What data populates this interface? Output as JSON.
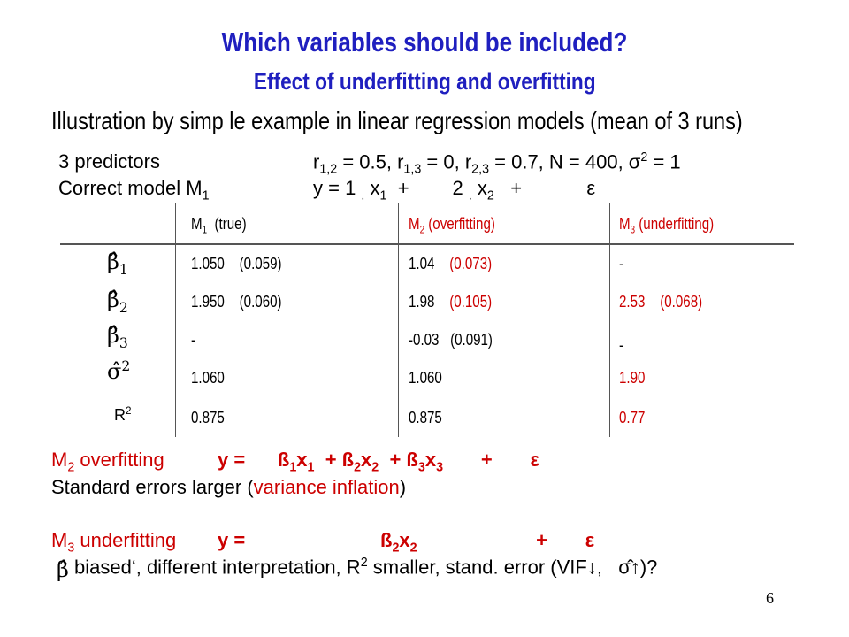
{
  "title": "Which variables should be included?",
  "subtitle": "Effect of underfitting and overfitting",
  "illustration": "Illustration by simp le example in linear regression models (mean of 3 runs)",
  "setup": {
    "predictors_label": "3 predictors",
    "correlations": "r1,2 = 0.5, r1,3 = 0, r2,3 = 0.7, N = 400, σ2 = 1",
    "model_label": "Correct model M1",
    "model_eq": "y = 1 . x1 + 2 . x2 + ε"
  },
  "table": {
    "headers": [
      "M1 (true)",
      "M2 (overfitting)",
      "M3 (underfitting)"
    ],
    "rows": [
      {
        "label": "β̂1",
        "m1": "1.050 (0.059)",
        "m2": "1.04 (0.073)",
        "m3": "-"
      },
      {
        "label": "β̂2",
        "m1": "1.950 (0.060)",
        "m2": "1.98 (0.105)",
        "m3": "2.53 (0.068)"
      },
      {
        "label": "β̂3",
        "m1": "-",
        "m2": "-0.03 (0.091)",
        "m3": "-"
      },
      {
        "label": "σ̂2",
        "m1": "1.060",
        "m2": "1.060",
        "m3": "1.90"
      },
      {
        "label": "R2",
        "m1": "0.875",
        "m2": "0.875",
        "m3": "0.77"
      }
    ]
  },
  "overfit": {
    "label": "M2 overfitting",
    "eq": "y = ß1x1 + ß2x2 + ß3x3 + ε",
    "note_prefix": "Standard errors larger (",
    "note_highlight": "variance inflation",
    "note_suffix": ")"
  },
  "underfit": {
    "label": "M3 underfitting",
    "eq": "y = ß2x2 + ε",
    "note": "biased‘, different interpretation, R2 smaller, stand. error (VIF↓, σ̂↑)?"
  },
  "page_number": "6",
  "colors": {
    "title": "#1f1fbf",
    "highlight": "#cc0000",
    "text": "#000000"
  }
}
